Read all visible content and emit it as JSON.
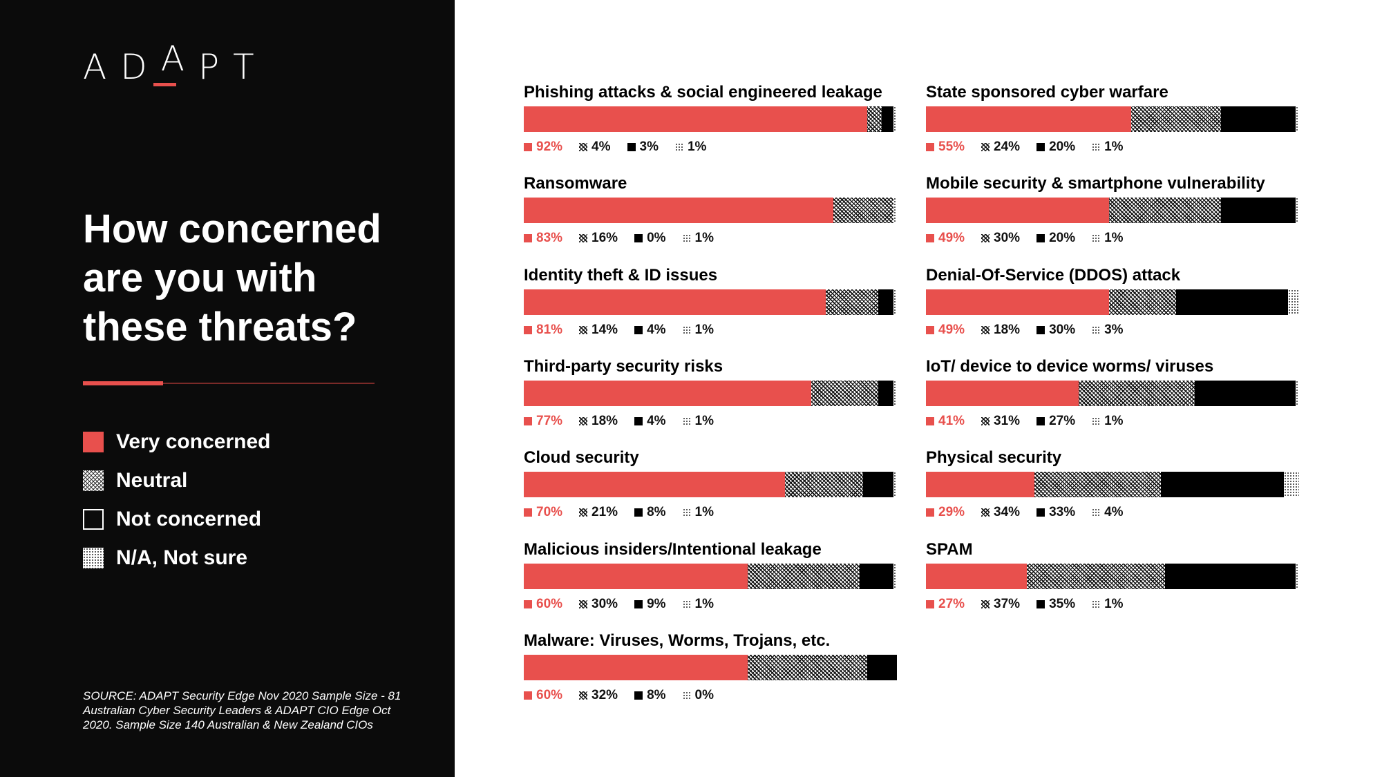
{
  "brand": {
    "logo_letters": [
      "A",
      "D",
      "A",
      "P",
      "T"
    ],
    "accent_color": "#e8504d"
  },
  "heading": {
    "line1": "How concerned",
    "line2": "are you with",
    "line3": "these threats?"
  },
  "legend": {
    "very": "Very concerned",
    "neutral": "Neutral",
    "not": "Not concerned",
    "na": "N/A, Not sure"
  },
  "source": {
    "line1": "SOURCE: ADAPT Security Edge Nov 2020 Sample Size - 81",
    "line2": "Australian Cyber Security Leaders & ADAPT CIO Edge Oct",
    "line3": "2020. Sample Size 140 Australian & New Zealand CIOs"
  },
  "colors": {
    "very_concerned": "#e8504d",
    "not_concerned": "#000000",
    "panel_background": "#0b0b0b"
  },
  "chart_data": {
    "type": "bar",
    "orientation": "horizontal",
    "stacked": true,
    "percent_suffix": "%",
    "series": [
      {
        "name": "Very concerned",
        "pattern": "solid-red"
      },
      {
        "name": "Neutral",
        "pattern": "crosshatch"
      },
      {
        "name": "Not concerned",
        "pattern": "solid-black"
      },
      {
        "name": "N/A, Not sure",
        "pattern": "dotted"
      }
    ],
    "items": [
      {
        "title": "Phishing attacks & social engineered leakage",
        "values": [
          92,
          4,
          3,
          1
        ]
      },
      {
        "title": "Ransomware",
        "values": [
          83,
          16,
          0,
          1
        ]
      },
      {
        "title": "Identity theft & ID issues",
        "values": [
          81,
          14,
          4,
          1
        ]
      },
      {
        "title": "Third-party security risks",
        "values": [
          77,
          18,
          4,
          1
        ]
      },
      {
        "title": "Cloud security",
        "values": [
          70,
          21,
          8,
          1
        ]
      },
      {
        "title": "Malicious insiders/Intentional  leakage",
        "values": [
          60,
          30,
          9,
          1
        ]
      },
      {
        "title": "Malware: Viruses, Worms, Trojans, etc.",
        "values": [
          60,
          32,
          8,
          0
        ]
      },
      {
        "title": "State sponsored cyber warfare",
        "values": [
          55,
          24,
          20,
          1
        ]
      },
      {
        "title": "Mobile security & smartphone vulnerability",
        "values": [
          49,
          30,
          20,
          1
        ]
      },
      {
        "title": "Denial-Of-Service (DDOS) attack",
        "values": [
          49,
          18,
          30,
          3
        ]
      },
      {
        "title": "IoT/ device to device worms/ viruses",
        "values": [
          41,
          31,
          27,
          1
        ]
      },
      {
        "title": "Physical security",
        "values": [
          29,
          34,
          33,
          4
        ]
      },
      {
        "title": "SPAM",
        "values": [
          27,
          37,
          35,
          1
        ]
      }
    ]
  }
}
